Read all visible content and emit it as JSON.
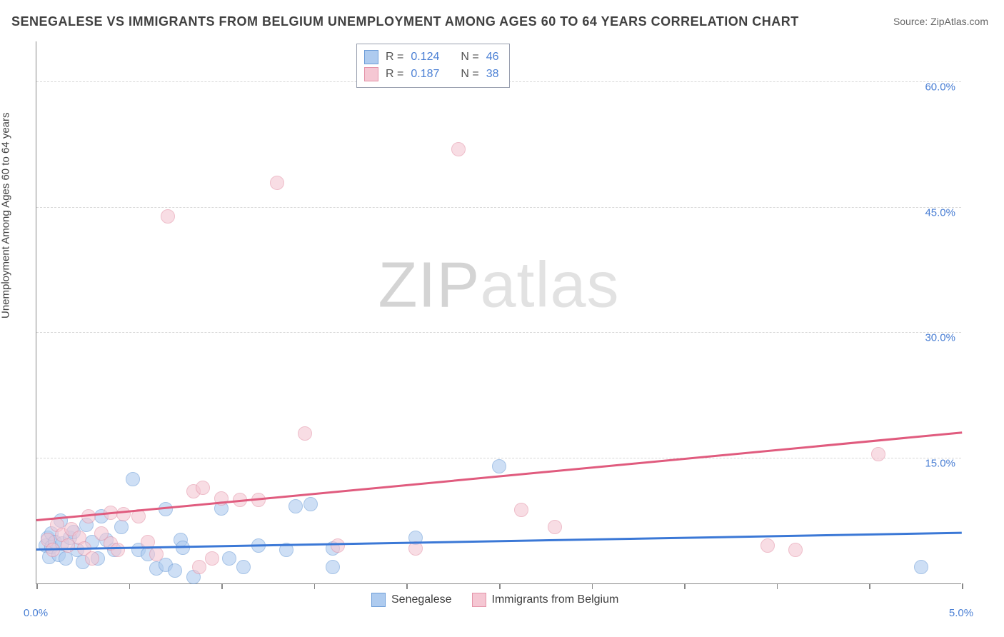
{
  "title": "SENEGALESE VS IMMIGRANTS FROM BELGIUM UNEMPLOYMENT AMONG AGES 60 TO 64 YEARS CORRELATION CHART",
  "source": "Source: ZipAtlas.com",
  "y_axis_label": "Unemployment Among Ages 60 to 64 years",
  "watermark_zip": "ZIP",
  "watermark_atlas": "atlas",
  "chart": {
    "type": "scatter",
    "background_color": "#ffffff",
    "grid_color": "#d8d8d8",
    "axis_color": "#888888",
    "xlim": [
      0.0,
      5.0
    ],
    "ylim": [
      0.0,
      65.0
    ],
    "y_gridlines": [
      15.0,
      30.0,
      45.0,
      60.0
    ],
    "y_tick_labels": [
      "15.0%",
      "30.0%",
      "45.0%",
      "60.0%"
    ],
    "x_ticks": [
      0.0,
      0.5,
      1.0,
      1.5,
      2.0,
      2.5,
      3.0,
      3.5,
      4.0,
      4.5,
      5.0
    ],
    "x_label_ticks": [
      {
        "value": 0.0,
        "label": "0.0%"
      },
      {
        "value": 5.0,
        "label": "5.0%"
      }
    ],
    "marker_radius": 10,
    "marker_opacity": 0.6,
    "title_fontsize": 18,
    "label_fontsize": 15,
    "tick_color": "#4a7fd4"
  },
  "series": [
    {
      "name": "Senegalese",
      "fill_color": "#aecbef",
      "stroke_color": "#6d9dd8",
      "trend_color": "#3b78d6",
      "trend_width": 2.5,
      "R_label": "R =",
      "N_label": "N =",
      "R": "0.124",
      "N": "46",
      "trend": {
        "x1": 0.0,
        "y1": 4.0,
        "x2": 5.0,
        "y2": 6.0
      },
      "points": [
        [
          0.05,
          4.5
        ],
        [
          0.06,
          5.5
        ],
        [
          0.07,
          3.2
        ],
        [
          0.08,
          4.4
        ],
        [
          0.08,
          6.0
        ],
        [
          0.1,
          5.0
        ],
        [
          0.12,
          3.4
        ],
        [
          0.13,
          7.5
        ],
        [
          0.14,
          4.8
        ],
        [
          0.16,
          3.0
        ],
        [
          0.18,
          5.5
        ],
        [
          0.2,
          6.2
        ],
        [
          0.22,
          4.0
        ],
        [
          0.25,
          2.6
        ],
        [
          0.27,
          7.0
        ],
        [
          0.3,
          5.0
        ],
        [
          0.33,
          3.0
        ],
        [
          0.35,
          8.0
        ],
        [
          0.38,
          5.2
        ],
        [
          0.42,
          4.0
        ],
        [
          0.46,
          6.8
        ],
        [
          0.52,
          12.5
        ],
        [
          0.55,
          4.0
        ],
        [
          0.6,
          3.5
        ],
        [
          0.65,
          1.8
        ],
        [
          0.7,
          8.9
        ],
        [
          0.7,
          2.2
        ],
        [
          0.75,
          1.5
        ],
        [
          0.78,
          5.2
        ],
        [
          0.79,
          4.3
        ],
        [
          0.85,
          0.8
        ],
        [
          1.0,
          9.0
        ],
        [
          1.04,
          3.0
        ],
        [
          1.12,
          2.0
        ],
        [
          1.2,
          4.5
        ],
        [
          1.35,
          4.0
        ],
        [
          1.4,
          9.2
        ],
        [
          1.48,
          9.5
        ],
        [
          1.6,
          4.2
        ],
        [
          1.6,
          2.0
        ],
        [
          2.05,
          5.5
        ],
        [
          2.5,
          14.0
        ],
        [
          4.78,
          2.0
        ]
      ]
    },
    {
      "name": "Immigrants from Belgium",
      "fill_color": "#f5c7d3",
      "stroke_color": "#e493a8",
      "trend_color": "#e05b7e",
      "trend_width": 2.5,
      "R_label": "R =",
      "N_label": "N =",
      "R": "0.187",
      "N": "38",
      "trend": {
        "x1": 0.0,
        "y1": 7.5,
        "x2": 5.0,
        "y2": 18.0
      },
      "points": [
        [
          0.06,
          5.2
        ],
        [
          0.09,
          4.0
        ],
        [
          0.11,
          7.0
        ],
        [
          0.14,
          5.8
        ],
        [
          0.17,
          4.5
        ],
        [
          0.19,
          6.5
        ],
        [
          0.23,
          5.5
        ],
        [
          0.26,
          4.2
        ],
        [
          0.28,
          8.0
        ],
        [
          0.3,
          3.0
        ],
        [
          0.35,
          6.0
        ],
        [
          0.4,
          4.8
        ],
        [
          0.4,
          8.5
        ],
        [
          0.44,
          4.0
        ],
        [
          0.47,
          8.3
        ],
        [
          0.55,
          8.0
        ],
        [
          0.6,
          5.0
        ],
        [
          0.65,
          3.5
        ],
        [
          0.71,
          44.0
        ],
        [
          0.85,
          11.0
        ],
        [
          0.88,
          2.0
        ],
        [
          0.9,
          11.5
        ],
        [
          0.95,
          3.0
        ],
        [
          1.0,
          10.2
        ],
        [
          1.1,
          10.0
        ],
        [
          1.2,
          10.0
        ],
        [
          1.3,
          48.0
        ],
        [
          1.45,
          18.0
        ],
        [
          1.63,
          4.5
        ],
        [
          2.05,
          4.2
        ],
        [
          2.28,
          52.0
        ],
        [
          2.62,
          8.8
        ],
        [
          2.8,
          6.8
        ],
        [
          3.95,
          4.5
        ],
        [
          4.1,
          4.0
        ],
        [
          4.55,
          15.5
        ]
      ]
    }
  ],
  "bottom_legend": [
    {
      "label": "Senegalese",
      "fill": "#aecbef",
      "stroke": "#6d9dd8"
    },
    {
      "label": "Immigrants from Belgium",
      "fill": "#f5c7d3",
      "stroke": "#e493a8"
    }
  ]
}
